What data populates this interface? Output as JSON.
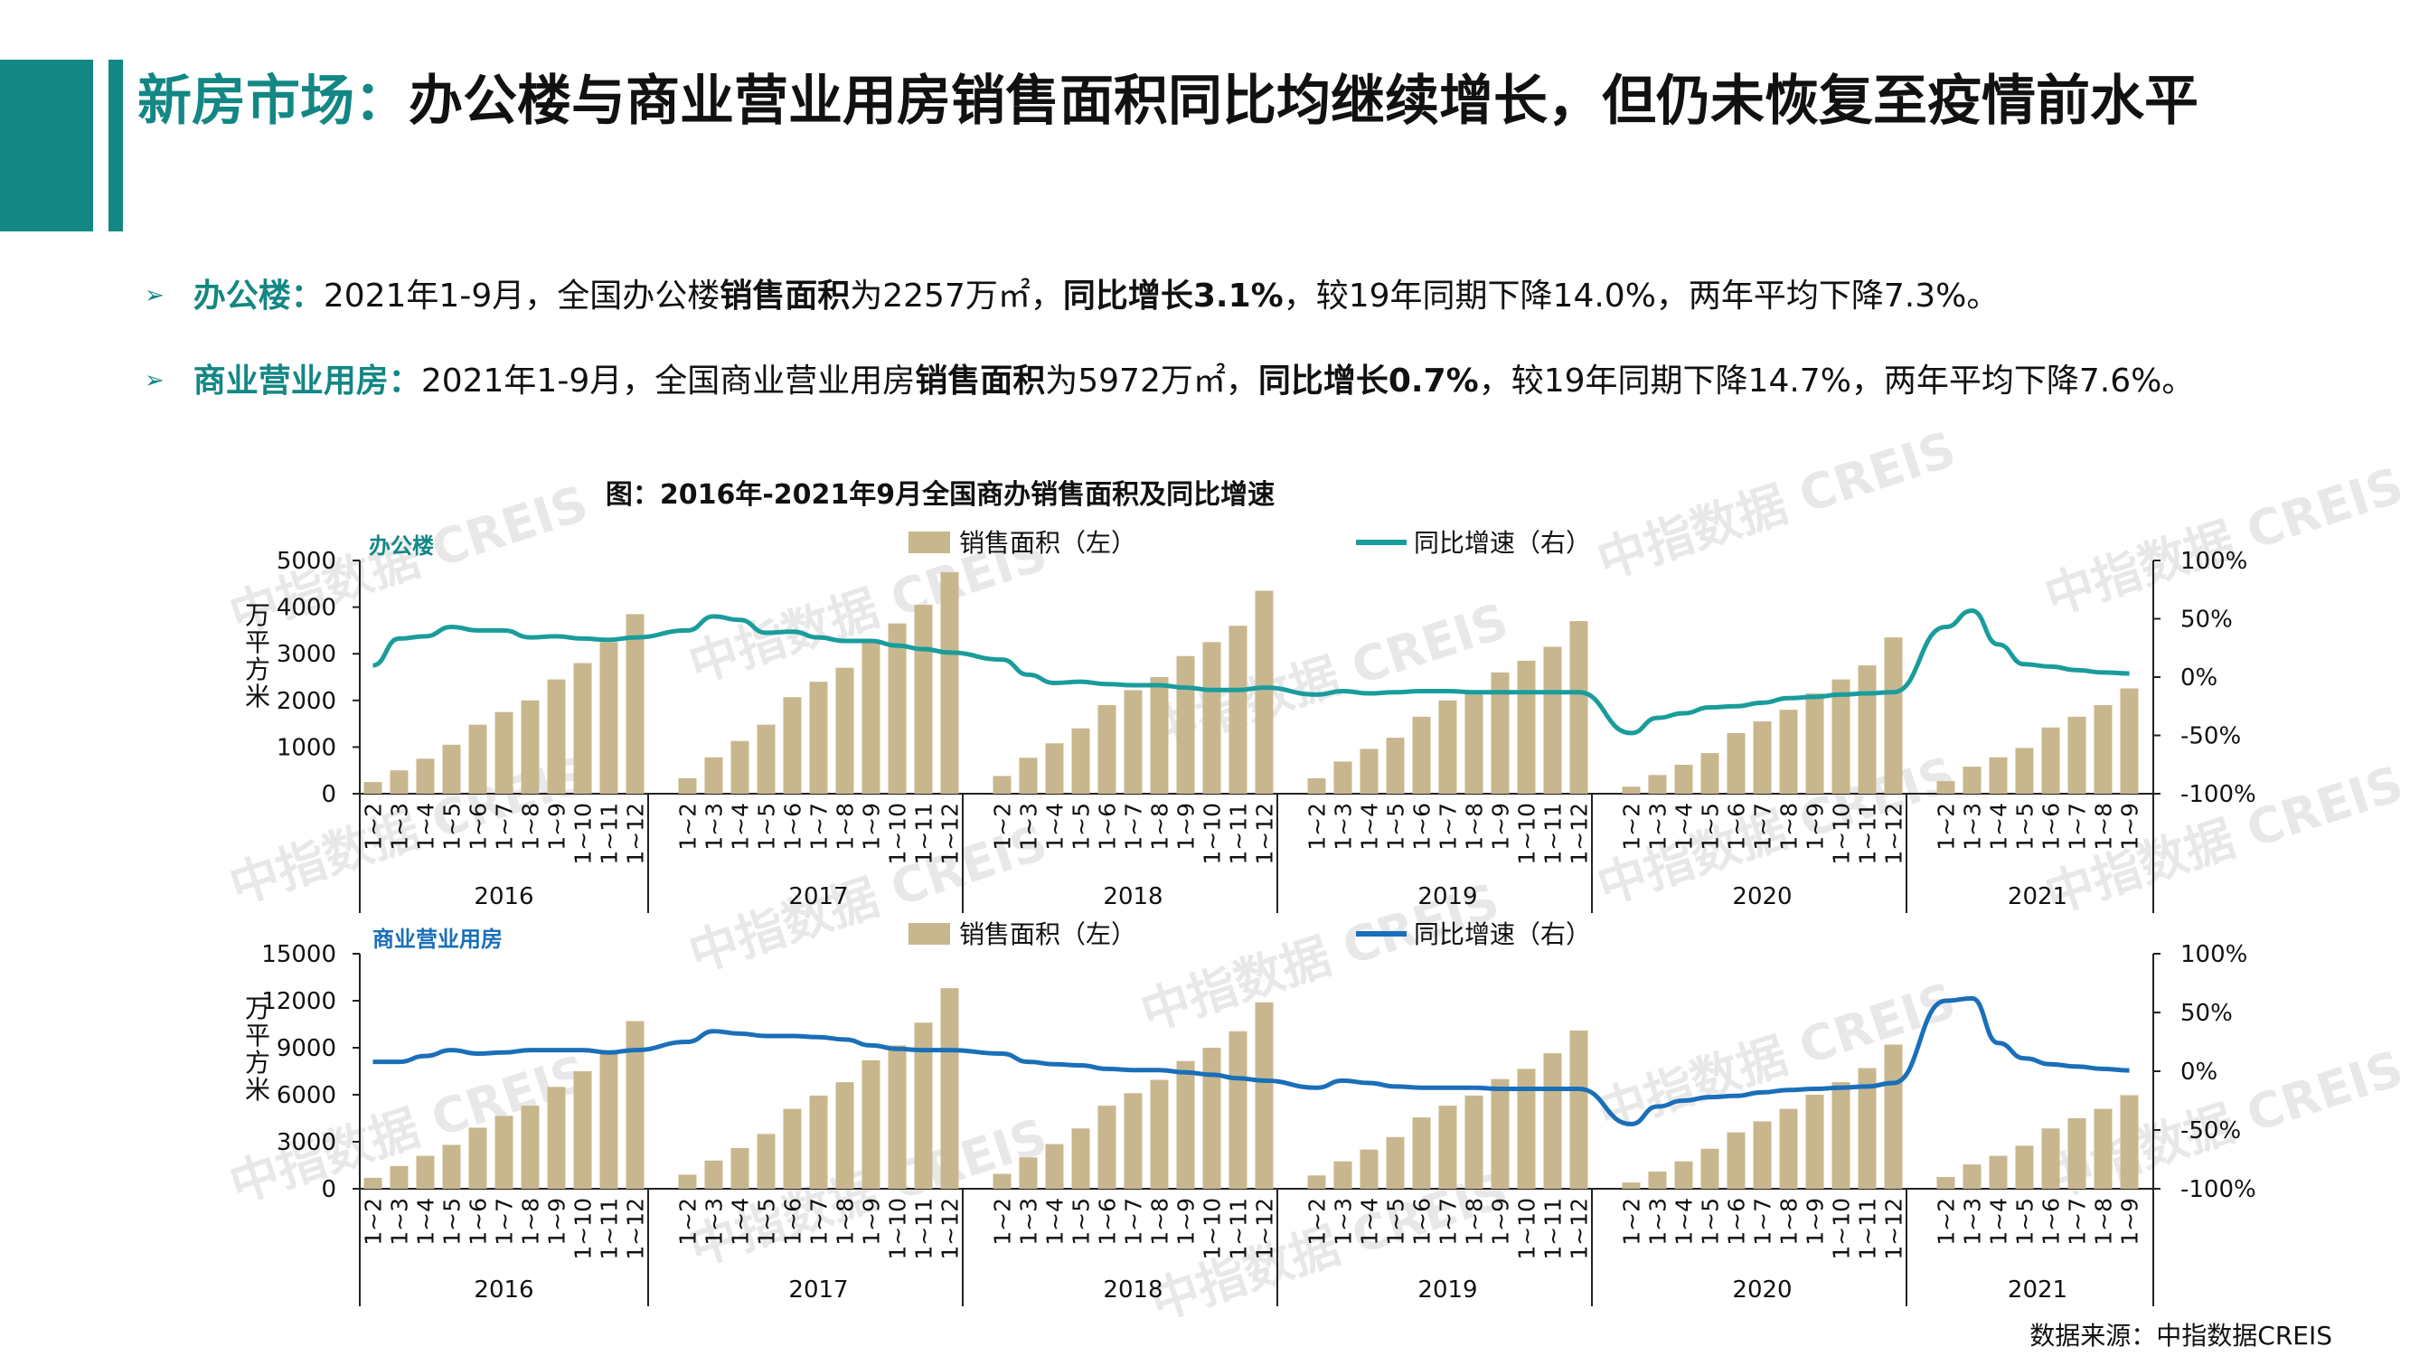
{
  "header": {
    "title_accent": "新房市场：",
    "title_rest": "办公楼与商业营业用房销售面积同比均继续增长，但仍未恢复至疫情前水平"
  },
  "bullets": [
    {
      "label": "办公楼：",
      "t1": "2021年1-9月，全国办公楼",
      "b1": "销售面积",
      "t2": "为2257万㎡，",
      "b2": "同比增长3.1%",
      "t3": "，较19年同期下降14.0%，两年平均下降7.3%。"
    },
    {
      "label": "商业营业用房：",
      "t1": "2021年1-9月，全国商业营业用房",
      "b1": "销售面积",
      "t2": "为5972万㎡，",
      "b2": "同比增长0.7%",
      "t3": "，较19年同期下降14.7%，两年平均下降7.6%。"
    }
  ],
  "source": "数据来源：中指数据CREIS",
  "watermark": "中指数据 CREIS",
  "colors": {
    "accent": "#138784",
    "bar": "#C8B78E",
    "line_office": "#1A9C9C",
    "line_commercial": "#1A6FB8"
  },
  "chart_data": {
    "title": "图：2016年-2021年9月全国商办销售面积及同比增速",
    "x_labels": [
      "1~2",
      "1~3",
      "1~4",
      "1~5",
      "1~6",
      "1~7",
      "1~8",
      "1~9",
      "1~10",
      "1~11",
      "1~12"
    ],
    "charts": [
      {
        "name": "办公楼",
        "type": "bar+line",
        "ylabel_left": "万平方米",
        "left_ylim": [
          0,
          5000
        ],
        "left_ticks": [
          0,
          1000,
          2000,
          3000,
          4000,
          5000
        ],
        "right_ylim": [
          -100,
          100
        ],
        "right_ticks": [
          "100%",
          "50%",
          "0%",
          "-50%",
          "-100%"
        ],
        "bar_series": "销售面积（左）",
        "line_series": "同比增速（右）",
        "years": [
          {
            "year": "2016",
            "sales": [
              250,
              500,
              750,
              1050,
              1480,
              1750,
              2000,
              2450,
              2800,
              3250,
              3850
            ],
            "yoy": [
              10,
              33,
              35,
              43,
              40,
              40,
              34,
              35,
              33,
              32,
              34
            ]
          },
          {
            "year": "2017",
            "sales": [
              330,
              780,
              1130,
              1480,
              2070,
              2400,
              2700,
              3230,
              3650,
              4050,
              4750
            ],
            "yoy": [
              40,
              52,
              49,
              38,
              39,
              34,
              31,
              31,
              27,
              24,
              21
            ]
          },
          {
            "year": "2018",
            "sales": [
              380,
              770,
              1080,
              1400,
              1900,
              2220,
              2500,
              2950,
              3250,
              3600,
              4350
            ],
            "yoy": [
              15,
              2,
              -5,
              -4,
              -6,
              -7,
              -7,
              -9,
              -11,
              -11,
              -9
            ]
          },
          {
            "year": "2019",
            "sales": [
              330,
              690,
              960,
              1200,
              1650,
              2000,
              2200,
              2600,
              2850,
              3150,
              3700
            ],
            "yoy": [
              -15,
              -12,
              -14,
              -13,
              -12,
              -12,
              -13,
              -13,
              -13,
              -13,
              -13
            ]
          },
          {
            "year": "2020",
            "sales": [
              150,
              400,
              620,
              870,
              1300,
              1550,
              1800,
              2150,
              2450,
              2750,
              3350
            ],
            "yoy": [
              -48,
              -35,
              -31,
              -26,
              -25,
              -22,
              -18,
              -17,
              -15,
              -14,
              -13
            ]
          },
          {
            "year": "2021",
            "sales": [
              270,
              580,
              780,
              980,
              1420,
              1650,
              1900,
              2257
            ],
            "yoy": [
              43,
              57,
              28,
              11,
              9,
              6,
              4,
              3.1
            ]
          }
        ]
      },
      {
        "name": "商业营业用房",
        "type": "bar+line",
        "ylabel_left": "万平方米",
        "left_ylim": [
          0,
          15000
        ],
        "left_ticks": [
          0,
          3000,
          6000,
          9000,
          12000,
          15000
        ],
        "right_ylim": [
          -100,
          100
        ],
        "right_ticks": [
          "100%",
          "50%",
          "0%",
          "-50%",
          "-100%"
        ],
        "bar_series": "销售面积（左）",
        "line_series": "同比增速（右）",
        "years": [
          {
            "year": "2016",
            "sales": [
              700,
              1450,
              2100,
              2800,
              3900,
              4650,
              5300,
              6500,
              7500,
              8600,
              10700
            ],
            "yoy": [
              8,
              8,
              13,
              18,
              15,
              16,
              18,
              18,
              18,
              16,
              18
            ]
          },
          {
            "year": "2017",
            "sales": [
              900,
              1800,
              2600,
              3500,
              5100,
              5950,
              6800,
              8200,
              9150,
              10600,
              12800
            ],
            "yoy": [
              25,
              34,
              32,
              30,
              30,
              29,
              27,
              22,
              19,
              18,
              18
            ]
          },
          {
            "year": "2018",
            "sales": [
              950,
              2000,
              2850,
              3850,
              5300,
              6100,
              6950,
              8150,
              9000,
              10050,
              11900
            ],
            "yoy": [
              15,
              8,
              6,
              5,
              2,
              1,
              1,
              -1,
              -3,
              -6,
              -8
            ]
          },
          {
            "year": "2019",
            "sales": [
              850,
              1750,
              2500,
              3300,
              4550,
              5300,
              5950,
              7000,
              7650,
              8650,
              10100
            ],
            "yoy": [
              -14,
              -8,
              -10,
              -13,
              -14,
              -14,
              -14,
              -15,
              -15,
              -15,
              -15
            ]
          },
          {
            "year": "2020",
            "sales": [
              400,
              1100,
              1750,
              2550,
              3600,
              4300,
              5100,
              6000,
              6800,
              7700,
              9200
            ],
            "yoy": [
              -45,
              -30,
              -25,
              -22,
              -21,
              -18,
              -16,
              -15,
              -14,
              -13,
              -10
            ]
          },
          {
            "year": "2021",
            "sales": [
              750,
              1550,
              2100,
              2750,
              3850,
              4500,
              5100,
              5972
            ],
            "yoy": [
              60,
              62,
              24,
              11,
              6,
              4,
              2,
              0.7
            ]
          }
        ]
      }
    ]
  }
}
